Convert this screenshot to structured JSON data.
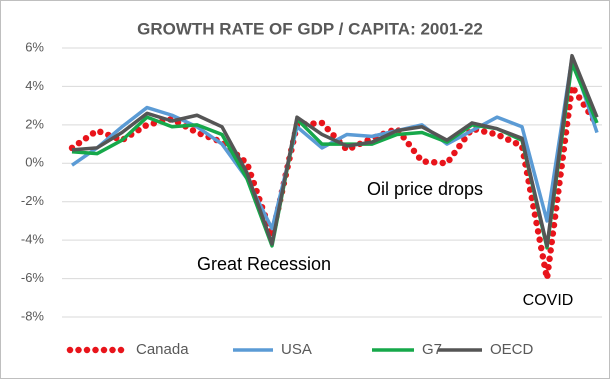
{
  "chart_data": {
    "type": "line",
    "title": "GROWTH RATE OF GDP / CAPITA: 2001-22",
    "categories": [
      null,
      null,
      null,
      null,
      null,
      null,
      null,
      null,
      null,
      null,
      null,
      null,
      null,
      null,
      null,
      null,
      null,
      null,
      null,
      null,
      null,
      null
    ],
    "series": [
      {
        "name": "Canada",
        "color": "#e8141b",
        "style": "dotted",
        "values": [
          0.8,
          1.7,
          1.2,
          2.0,
          2.3,
          1.6,
          1.1,
          0.0,
          -3.8,
          2.0,
          2.1,
          0.7,
          1.3,
          1.8,
          0.1,
          0.0,
          1.8,
          1.5,
          0.9,
          -6.0,
          4.0,
          2.0
        ]
      },
      {
        "name": "USA",
        "color": "#5b9bd5",
        "style": "solid",
        "values": [
          -0.1,
          0.8,
          1.9,
          2.9,
          2.5,
          1.9,
          1.0,
          -0.8,
          -3.4,
          1.9,
          0.8,
          1.5,
          1.4,
          1.7,
          2.0,
          1.0,
          1.7,
          2.4,
          1.9,
          -3.0,
          5.5,
          1.6
        ]
      },
      {
        "name": "G7",
        "color": "#16a84a",
        "style": "solid",
        "values": [
          0.6,
          0.5,
          1.2,
          2.4,
          1.9,
          2.0,
          1.5,
          -0.8,
          -4.3,
          2.3,
          1.0,
          1.0,
          1.0,
          1.5,
          1.6,
          1.1,
          2.0,
          1.8,
          1.2,
          -4.4,
          5.2,
          2.1
        ]
      },
      {
        "name": "OECD",
        "color": "#555555",
        "style": "solid",
        "values": [
          0.7,
          0.8,
          1.6,
          2.6,
          2.2,
          2.5,
          1.9,
          -0.5,
          -4.2,
          2.4,
          1.5,
          0.9,
          1.1,
          1.7,
          1.9,
          1.2,
          2.1,
          1.8,
          1.3,
          -4.3,
          5.6,
          2.4
        ]
      }
    ],
    "ylim": [
      -8,
      6
    ],
    "yticks": [
      {
        "value": 6,
        "label": "6%"
      },
      {
        "value": 4,
        "label": "4%"
      },
      {
        "value": 2,
        "label": "2%"
      },
      {
        "value": 0,
        "label": "0%"
      },
      {
        "value": -2,
        "label": "-2%"
      },
      {
        "value": -4,
        "label": "-4%"
      },
      {
        "value": -6,
        "label": "-6%"
      },
      {
        "value": -8,
        "label": "-8%"
      }
    ],
    "grid": true,
    "legend": "bottom",
    "annotations": [
      "Great Recession",
      "Oil price drops",
      "COVID"
    ]
  }
}
